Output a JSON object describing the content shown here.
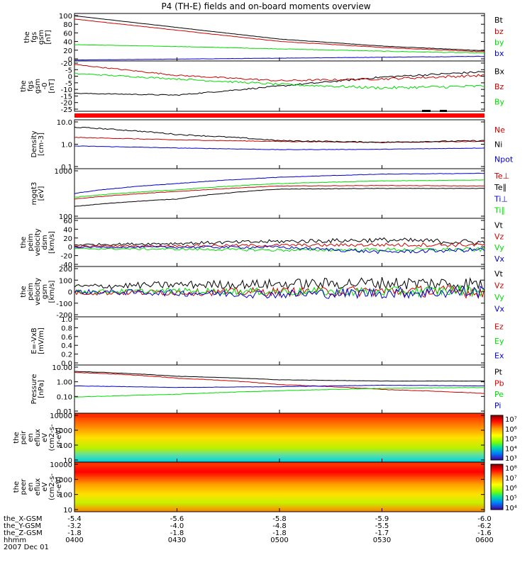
{
  "title": "P4 (TH-E) fields and on-board moments overview",
  "colors": {
    "black": "#000000",
    "red": "#cc0000",
    "green": "#00dd00",
    "blue": "#0000cc",
    "status_bar": "#ff0000"
  },
  "panels": [
    {
      "ylabel": [
        "the",
        "fgs",
        "gsm",
        "[nT]"
      ],
      "ticks": [
        "100",
        "80",
        "60",
        "40",
        "20",
        "0"
      ],
      "ylim": [
        -2,
        100
      ],
      "legend": [
        {
          "label": "Bt",
          "color": "black"
        },
        {
          "label": "bz",
          "color": "red"
        },
        {
          "label": "by",
          "color": "green"
        },
        {
          "label": "bx",
          "color": "blue"
        }
      ]
    },
    {
      "ylabel": [
        "the",
        "fgs",
        "gsm",
        "-0",
        "[nT]"
      ],
      "ticks": [
        "-20",
        "-5",
        "0",
        "-5",
        "-10",
        "-15",
        "-20",
        "-25"
      ],
      "ylim": [
        -28,
        0
      ],
      "legend": [
        {
          "label": "Bx",
          "color": "black"
        },
        {
          "label": "Bz",
          "color": "red"
        },
        {
          "label": "By",
          "color": "green"
        }
      ]
    },
    {
      "ylabel": [
        "Density",
        "[cm-3]"
      ],
      "ticks": [
        "10.0",
        "1.0",
        "0.1"
      ],
      "scale": "log",
      "ylim": [
        0.1,
        10
      ],
      "legend": [
        {
          "label": "Ne",
          "color": "red"
        },
        {
          "label": "Ni",
          "color": "black"
        },
        {
          "label": "Npot",
          "color": "blue"
        }
      ]
    },
    {
      "ylabel": [
        "mgqt3",
        "[eV]"
      ],
      "ticks": [
        "1000",
        "100"
      ],
      "scale": "log",
      "ylim": [
        100,
        10000
      ],
      "legend": [
        {
          "label": "Te⊥",
          "color": "red"
        },
        {
          "label": "Te∥",
          "color": "black"
        },
        {
          "label": "Ti⊥",
          "color": "blue"
        },
        {
          "label": "Ti∥",
          "color": "green"
        }
      ]
    },
    {
      "ylabel": [
        "the",
        "peim",
        "velocity",
        "dsm",
        "[km/s]"
      ],
      "ticks": [
        "60",
        "40",
        "20",
        "0",
        "-20",
        "-40"
      ],
      "ylim": [
        -40,
        60
      ],
      "legend": [
        {
          "label": "Vt",
          "color": "black"
        },
        {
          "label": "Vz",
          "color": "red"
        },
        {
          "label": "Vy",
          "color": "green"
        },
        {
          "label": "Vx",
          "color": "blue"
        }
      ]
    },
    {
      "ylabel": [
        "the",
        "peim",
        "velocity",
        "gsm",
        "[km/s]"
      ],
      "ticks": [
        "200",
        "100",
        "0",
        "-100",
        "-200"
      ],
      "ylim": [
        -200,
        200
      ],
      "legend": [
        {
          "label": "Vt",
          "color": "black"
        },
        {
          "label": "Vz",
          "color": "red"
        },
        {
          "label": "Vy",
          "color": "green"
        },
        {
          "label": "Vx",
          "color": "blue"
        }
      ]
    },
    {
      "ylabel": [
        "E=-VxB",
        "[mV/m]"
      ],
      "ticks": [
        "1.0",
        "0.8",
        "0.6",
        "0.4",
        "0.2",
        "0.0"
      ],
      "ylim": [
        0,
        1
      ],
      "legend": [
        {
          "label": "Ez",
          "color": "red"
        },
        {
          "label": "Ey",
          "color": "green"
        },
        {
          "label": "Ex",
          "color": "blue"
        }
      ]
    },
    {
      "ylabel": [
        "Pressure",
        "[nPa]"
      ],
      "ticks": [
        "10.00",
        "1.00",
        "0.10",
        "0.01"
      ],
      "scale": "log",
      "ylim": [
        0.01,
        10
      ],
      "legend": [
        {
          "label": "Pt",
          "color": "black"
        },
        {
          "label": "Pb",
          "color": "red"
        },
        {
          "label": "Pe",
          "color": "green"
        },
        {
          "label": "Pi",
          "color": "blue"
        }
      ]
    },
    {
      "ylabel": [
        "the",
        "peir",
        "en",
        "eflux",
        "eV",
        "(cm2-s-",
        "sr-eV)"
      ],
      "ticks": [
        "10000",
        "1000",
        "100",
        "10"
      ],
      "scale": "log",
      "ylim": [
        7,
        20000
      ],
      "colorbar": [
        "10⁷",
        "10⁶",
        "10⁵",
        "10⁴",
        "10³"
      ]
    },
    {
      "ylabel": [
        "the",
        "peer",
        "en",
        "eflux",
        "eV",
        "(cm2-s-",
        "sr-eV)"
      ],
      "ticks": [
        "10000",
        "1000",
        "100",
        "10"
      ],
      "scale": "log",
      "ylim": [
        7,
        20000
      ],
      "colorbar": [
        "10⁸",
        "10⁷",
        "10⁶",
        "10⁵",
        "10⁴"
      ]
    }
  ],
  "xaxis": {
    "rows": [
      {
        "label": "the_X-GSM",
        "values": [
          "-5.4",
          "-5.6",
          "-5.8",
          "-5.9",
          "-6.0"
        ]
      },
      {
        "label": "the_Y-GSM",
        "values": [
          "-3.2",
          "-4.0",
          "-4.8",
          "-5.5",
          "-6.2"
        ]
      },
      {
        "label": "the_Z-GSM",
        "values": [
          "-1.8",
          "-1.8",
          "-1.8",
          "-1.7",
          "-1.6"
        ]
      },
      {
        "label": "hhmm",
        "values": [
          "0400",
          "0430",
          "0500",
          "0530",
          "0600"
        ]
      }
    ],
    "date": "2007 Dec 01"
  },
  "chart_data": {
    "type": "line",
    "title": "P4 (TH-E) fields and on-board moments overview",
    "x": [
      "0400",
      "0430",
      "0500",
      "0530",
      "0600"
    ],
    "panels": [
      {
        "name": "the fgs gsm",
        "series": [
          {
            "name": "Bt",
            "values": [
              95,
              70,
              45,
              30,
              20
            ]
          },
          {
            "name": "bz",
            "values": [
              88,
              64,
              40,
              27,
              18
            ]
          },
          {
            "name": "by",
            "values": [
              33,
              29,
              24,
              19,
              15
            ]
          },
          {
            "name": "bx",
            "values": [
              0,
              2,
              4,
              6,
              8
            ]
          }
        ]
      },
      {
        "name": "the fgs gsm -0",
        "series": [
          {
            "name": "Bx",
            "values": [
              -18,
              -19,
              -14,
              -9,
              -6
            ]
          },
          {
            "name": "Bz",
            "values": [
              -2,
              -8,
              -11,
              -10,
              -8
            ]
          },
          {
            "name": "By",
            "values": [
              -7,
              -10,
              -13,
              -15,
              -14
            ]
          }
        ]
      },
      {
        "name": "Density",
        "series": [
          {
            "name": "Ne",
            "values": [
              1.9,
              1.5,
              1.3,
              1.2,
              1.3
            ]
          },
          {
            "name": "Ni",
            "values": [
              5,
              2.5,
              1.4,
              1.2,
              1.4
            ]
          },
          {
            "name": "Npot",
            "values": [
              0.85,
              0.7,
              0.6,
              0.62,
              0.7
            ]
          }
        ]
      },
      {
        "name": "mgqt3",
        "series": [
          {
            "name": "Te⊥",
            "values": [
              600,
              1200,
              2000,
              2100,
              2000
            ]
          },
          {
            "name": "Te∥",
            "values": [
              300,
              600,
              1500,
              1600,
              1600
            ]
          },
          {
            "name": "Ti⊥",
            "values": [
              1000,
              2500,
              4500,
              6000,
              6500
            ]
          },
          {
            "name": "Ti∥",
            "values": [
              700,
              1400,
              2500,
              3200,
              3500
            ]
          }
        ]
      },
      {
        "name": "the peim velocity dsm",
        "series": [
          {
            "name": "Vt",
            "values": [
              5,
              8,
              12,
              15,
              10
            ]
          },
          {
            "name": "Vz",
            "values": [
              2,
              3,
              4,
              5,
              5
            ]
          },
          {
            "name": "Vy",
            "values": [
              -3,
              -4,
              -6,
              -5,
              -5
            ]
          },
          {
            "name": "Vx",
            "values": [
              0,
              0,
              0,
              -10,
              -5
            ]
          }
        ]
      },
      {
        "name": "the peim velocity gsm",
        "series": [
          {
            "name": "Vt",
            "values": [
              40,
              55,
              60,
              70,
              60
            ]
          },
          {
            "name": "Vz",
            "values": [
              -10,
              -5,
              0,
              5,
              0
            ]
          },
          {
            "name": "Vy",
            "values": [
              0,
              5,
              0,
              0,
              10
            ]
          },
          {
            "name": "Vx",
            "values": [
              0,
              -10,
              -20,
              -10,
              0
            ]
          }
        ]
      },
      {
        "name": "Pressure",
        "series": [
          {
            "name": "Pt",
            "values": [
              4,
              2,
              1.2,
              1.0,
              1.0
            ]
          },
          {
            "name": "Pb",
            "values": [
              3.5,
              1.5,
              0.6,
              0.3,
              0.17
            ]
          },
          {
            "name": "Pe",
            "values": [
              0.1,
              0.15,
              0.25,
              0.35,
              0.4
            ]
          },
          {
            "name": "Pi",
            "values": [
              0.5,
              0.4,
              0.45,
              0.55,
              0.5
            ]
          }
        ]
      }
    ]
  }
}
